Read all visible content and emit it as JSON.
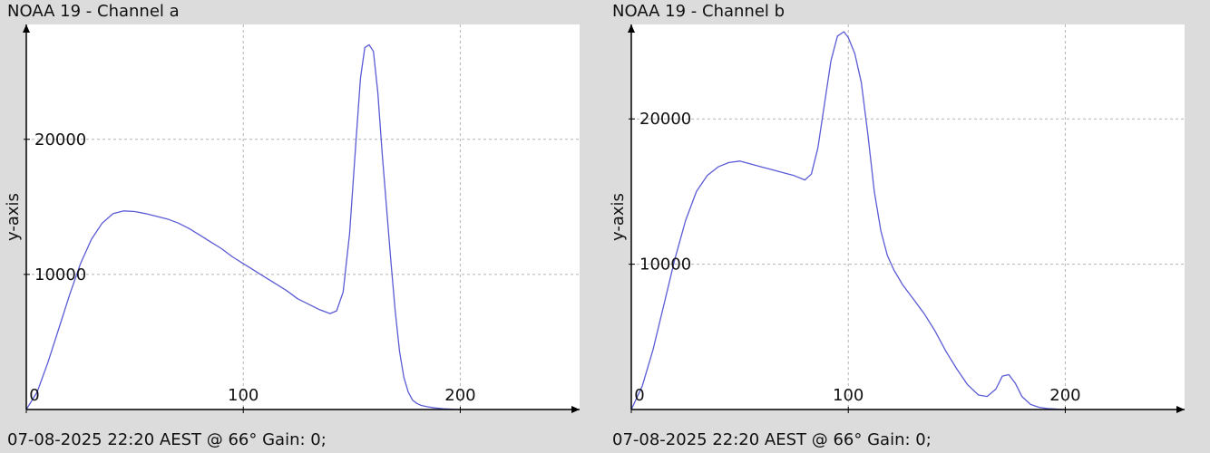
{
  "panels": [
    {
      "title": "NOAA 19 - Channel a",
      "footer": "07-08-2025 22:20 AEST @ 66° Gain: 0;",
      "colors": {
        "line": "#5b5bd6",
        "grid": "#b4b4b4",
        "axis": "#000000",
        "plot_bg": "#ffffff",
        "window_bg": "#dcdcdc"
      }
    },
    {
      "title": "NOAA 19 - Channel b",
      "footer": "07-08-2025 22:20 AEST @ 66° Gain: 0;",
      "colors": {
        "line": "#5b5bd6",
        "grid": "#b4b4b4",
        "axis": "#000000",
        "plot_bg": "#ffffff",
        "window_bg": "#dcdcdc"
      }
    }
  ],
  "chart_data": [
    {
      "type": "line",
      "title": "NOAA 19 - Channel a",
      "xlabel": "",
      "ylabel": "y-axis",
      "xlim": [
        0,
        255
      ],
      "ylim": [
        0,
        28500
      ],
      "xticks": [
        0,
        100,
        200
      ],
      "yticks": [
        0,
        10000,
        20000
      ],
      "grid": true,
      "legend": "none",
      "series": [
        {
          "x": [
            0,
            5,
            10,
            15,
            20,
            25,
            30,
            35,
            40,
            45,
            50,
            55,
            60,
            65,
            70,
            75,
            80,
            85,
            90,
            95,
            100,
            105,
            110,
            115,
            120,
            125,
            130,
            135,
            140,
            143,
            146,
            149,
            152,
            154,
            156,
            158,
            160,
            162,
            164,
            166,
            168,
            170,
            172,
            174,
            176,
            178,
            180,
            182,
            185,
            188,
            192,
            196,
            200
          ],
          "y": [
            0,
            1300,
            3500,
            6000,
            8500,
            10800,
            12600,
            13800,
            14500,
            14700,
            14650,
            14500,
            14300,
            14100,
            13800,
            13400,
            12900,
            12400,
            11900,
            11300,
            10800,
            10300,
            9800,
            9300,
            8800,
            8200,
            7800,
            7400,
            7100,
            7300,
            8700,
            13000,
            20000,
            24500,
            26800,
            27000,
            26500,
            23500,
            19000,
            15000,
            11000,
            7300,
            4300,
            2400,
            1300,
            700,
            450,
            300,
            200,
            120,
            60,
            30,
            0
          ]
        }
      ]
    },
    {
      "type": "line",
      "title": "NOAA 19 - Channel b",
      "xlabel": "",
      "ylabel": "y-axis",
      "xlim": [
        0,
        255
      ],
      "ylim": [
        0,
        26500
      ],
      "xticks": [
        0,
        100,
        200
      ],
      "yticks": [
        0,
        10000,
        20000
      ],
      "grid": true,
      "legend": "none",
      "series": [
        {
          "x": [
            0,
            5,
            10,
            15,
            20,
            25,
            30,
            35,
            40,
            45,
            50,
            55,
            60,
            65,
            70,
            75,
            80,
            83,
            86,
            89,
            92,
            95,
            98,
            100,
            103,
            106,
            109,
            112,
            115,
            118,
            121,
            125,
            130,
            135,
            140,
            145,
            150,
            155,
            160,
            164,
            168,
            171,
            174,
            177,
            180,
            184,
            188,
            192,
            196,
            200
          ],
          "y": [
            0,
            1600,
            4100,
            7200,
            10300,
            13000,
            15000,
            16100,
            16700,
            17000,
            17100,
            16900,
            16700,
            16500,
            16300,
            16100,
            15800,
            16200,
            18000,
            21000,
            24000,
            25700,
            26000,
            25600,
            24500,
            22500,
            19000,
            15000,
            12300,
            10600,
            9600,
            8600,
            7600,
            6600,
            5400,
            4000,
            2800,
            1700,
            1000,
            900,
            1400,
            2300,
            2400,
            1800,
            900,
            350,
            150,
            60,
            30,
            0
          ]
        }
      ]
    }
  ]
}
